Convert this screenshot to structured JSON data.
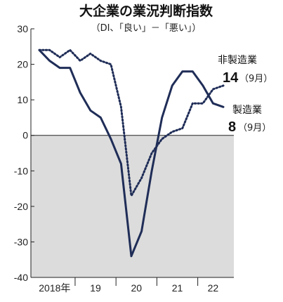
{
  "chart_data": {
    "type": "line",
    "title": "大企業の業況判断指数",
    "subtitle": "（DI、「良い」－「悪い」）",
    "ylim": [
      -40,
      30
    ],
    "yticks": [
      "30",
      "20",
      "10",
      "0",
      "-10",
      "-20",
      "-30",
      "-40"
    ],
    "ytick_values": [
      30,
      20,
      10,
      0,
      -10,
      -20,
      -30,
      -40
    ],
    "xticks": [
      "2018年",
      "19",
      "20",
      "21",
      "22"
    ],
    "negative_region_shaded": true,
    "shade_color": "#dcdcdc",
    "x": [
      "2018-03",
      "2018-06",
      "2018-09",
      "2018-12",
      "2019-03",
      "2019-06",
      "2019-09",
      "2019-12",
      "2020-03",
      "2020-06",
      "2020-09",
      "2020-12",
      "2021-03",
      "2021-06",
      "2021-09",
      "2021-12",
      "2022-03",
      "2022-06",
      "2022-09"
    ],
    "series": [
      {
        "name": "製造業",
        "style": "solid",
        "color": "#1f2d57",
        "values": [
          24,
          21,
          19,
          19,
          12,
          7,
          5,
          -1,
          -8,
          -34,
          -27,
          -10,
          5,
          14,
          18,
          18,
          14,
          9,
          8
        ],
        "label_value": "8",
        "label_month": "（9月）"
      },
      {
        "name": "非製造業",
        "style": "dotted",
        "color": "#1f2d57",
        "values": [
          24,
          24,
          22,
          24,
          21,
          23,
          21,
          20,
          8,
          -17,
          -12,
          -5,
          -1,
          1,
          2,
          9,
          9,
          13,
          14
        ],
        "label_value": "14",
        "label_month": "（9月）"
      }
    ]
  }
}
